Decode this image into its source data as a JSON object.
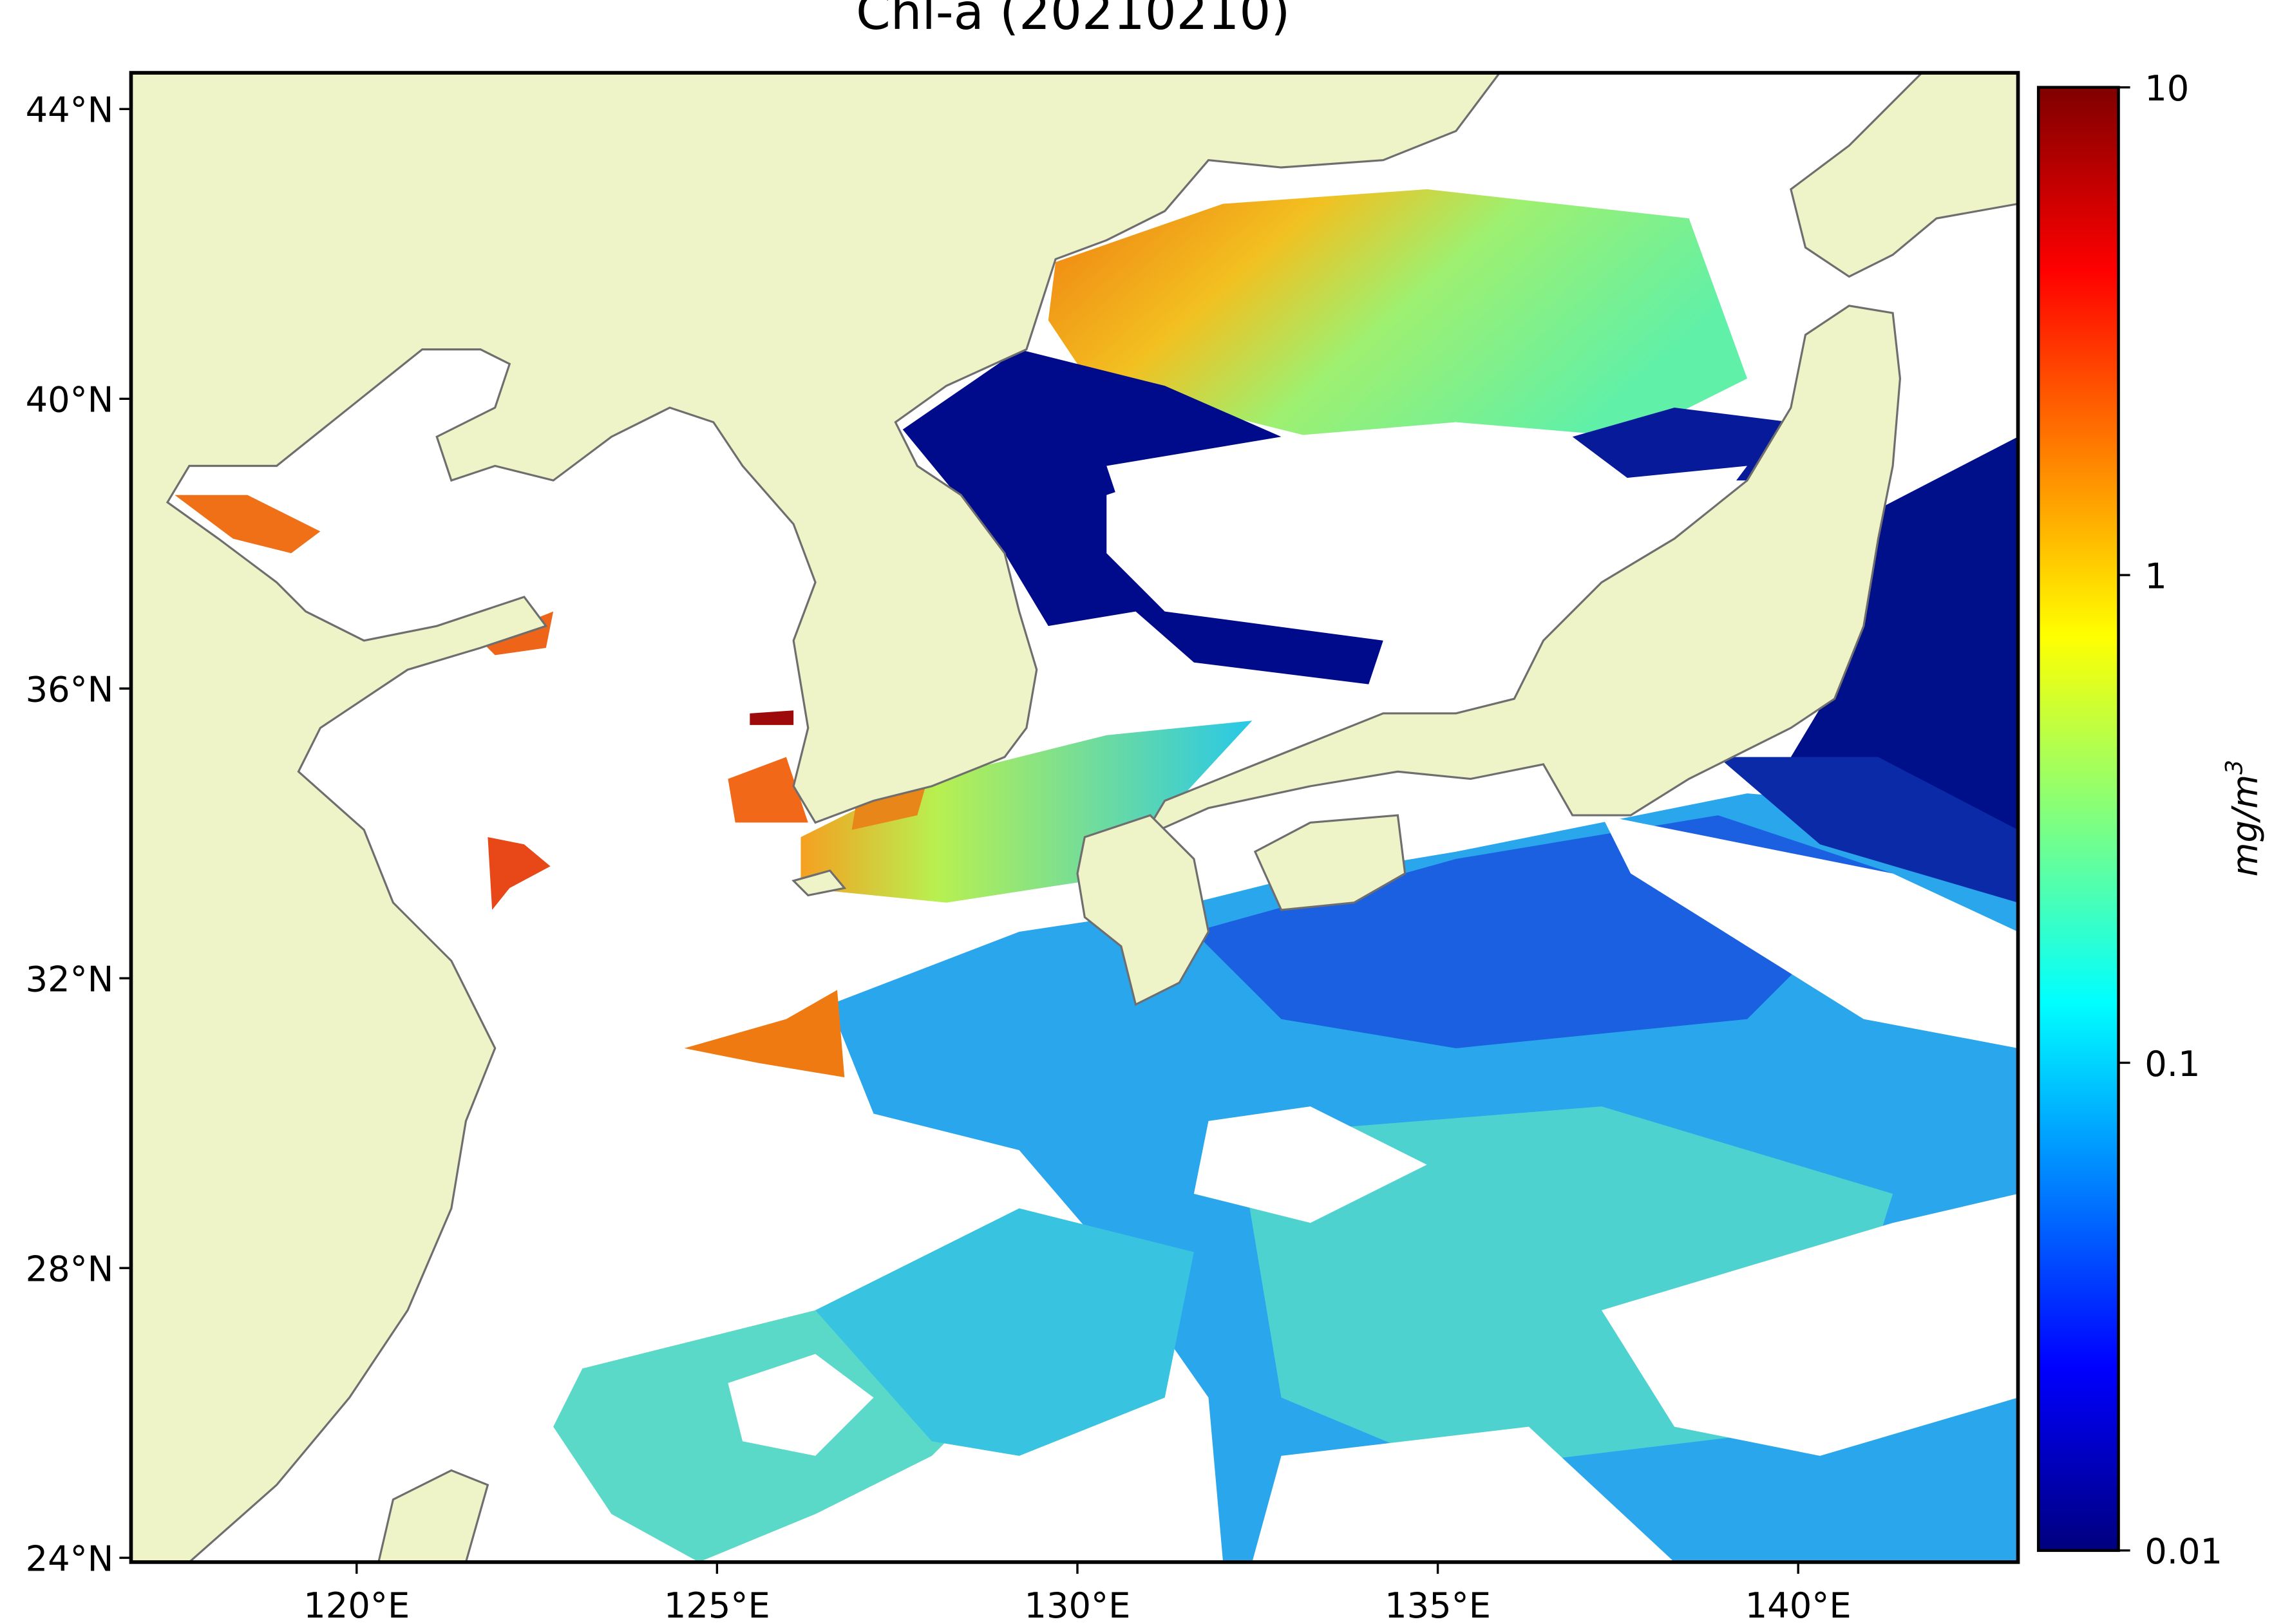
{
  "chart_data": {
    "type": "map",
    "title": "Chl-a (20210210)",
    "xlim": [
      116.87,
      143.05
    ],
    "ylim": [
      23.94,
      44.5
    ],
    "xticks": [
      {
        "value": 120,
        "label": "120°E"
      },
      {
        "value": 125,
        "label": "125°E"
      },
      {
        "value": 130,
        "label": "130°E"
      },
      {
        "value": 135,
        "label": "135°E"
      },
      {
        "value": 140,
        "label": "140°E"
      }
    ],
    "yticks": [
      {
        "value": 24,
        "label": "24°N"
      },
      {
        "value": 28,
        "label": "28°N"
      },
      {
        "value": 32,
        "label": "32°N"
      },
      {
        "value": 36,
        "label": "36°N"
      },
      {
        "value": 40,
        "label": "40°N"
      },
      {
        "value": 44,
        "label": "44°N"
      }
    ],
    "colorbar": {
      "scale": "log",
      "colormap": "jet",
      "lim": [
        0.01,
        10
      ],
      "ticks": [
        0.01,
        0.1,
        1,
        10
      ],
      "label": "mg/m",
      "label_exponent": "3"
    }
  }
}
